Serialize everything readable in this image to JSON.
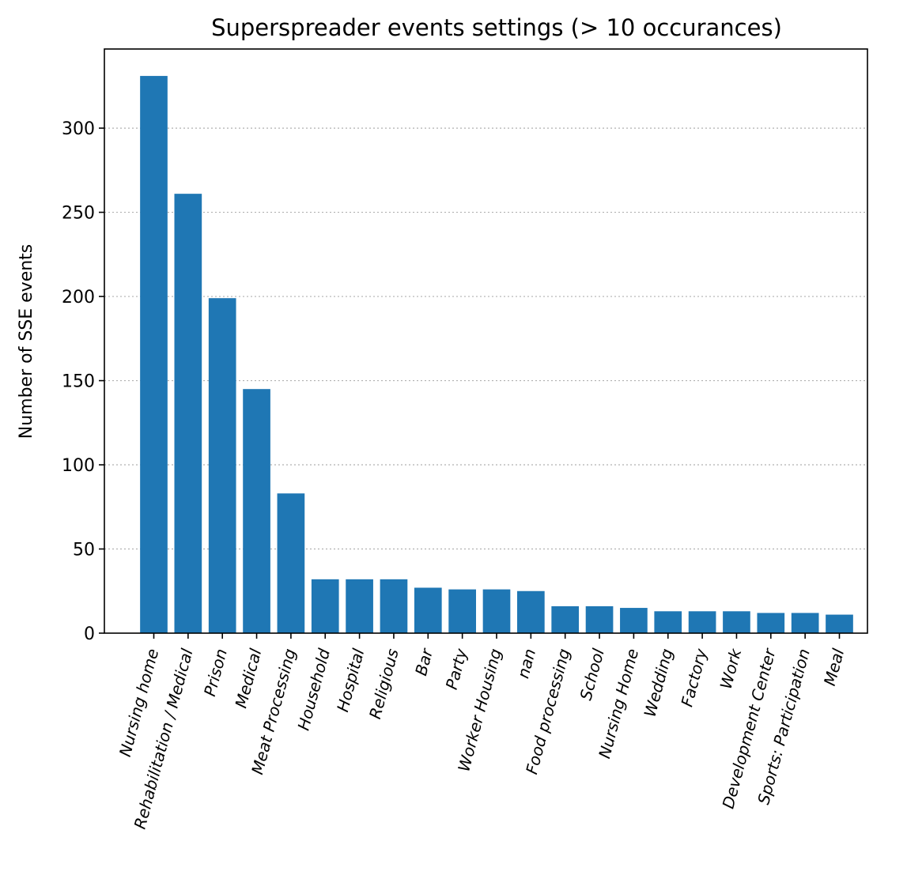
{
  "chart_data": {
    "type": "bar",
    "title": "Superspreader events settings (> 10 occurances)",
    "xlabel": "",
    "ylabel": "Number of SSE events",
    "categories": [
      "Nursing home",
      "Rehabilitation / Medical",
      "Prison",
      "Medical",
      "Meat Processing",
      "Household",
      "Hospital",
      "Religious",
      "Bar",
      "Party",
      "Worker Housing",
      "nan",
      "Food processing",
      "School",
      "Nursing Home",
      "Wedding",
      "Factory",
      "Work",
      "Development Center",
      "Sports: Participation",
      "Meal"
    ],
    "values": [
      331,
      261,
      199,
      145,
      83,
      32,
      32,
      32,
      27,
      26,
      26,
      25,
      16,
      16,
      15,
      13,
      13,
      13,
      12,
      12,
      11
    ],
    "yticks": [
      0,
      50,
      100,
      150,
      200,
      250,
      300
    ],
    "ylim": [
      0,
      347
    ],
    "grid": "y, dotted",
    "bar_color": "#1f77b4"
  }
}
